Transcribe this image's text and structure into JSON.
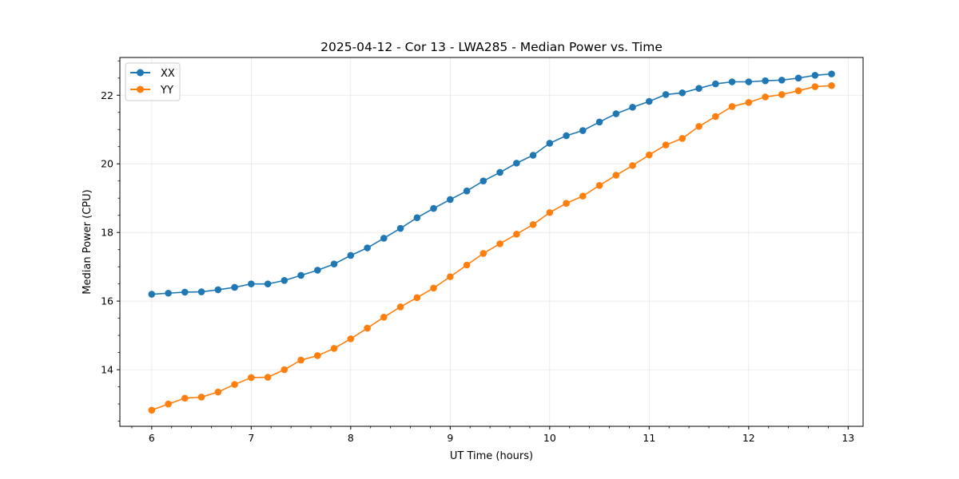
{
  "chart_data": {
    "type": "line",
    "title": "2025-04-12 - Cor 13 - LWA285 - Median Power vs. Time",
    "xlabel": "UT Time (hours)",
    "ylabel": "Median Power (CPU)",
    "xlim": [
      5.68,
      13.15
    ],
    "ylim": [
      12.35,
      23.1
    ],
    "xticks": [
      6,
      7,
      8,
      9,
      10,
      11,
      12,
      13
    ],
    "yticks": [
      14,
      16,
      18,
      20,
      22
    ],
    "grid": true,
    "legend_position": "upper-left",
    "x": [
      6.0,
      6.167,
      6.333,
      6.5,
      6.667,
      6.833,
      7.0,
      7.167,
      7.333,
      7.5,
      7.667,
      7.833,
      8.0,
      8.167,
      8.333,
      8.5,
      8.667,
      8.833,
      9.0,
      9.167,
      9.333,
      9.5,
      9.667,
      9.833,
      10.0,
      10.167,
      10.333,
      10.5,
      10.667,
      10.833,
      11.0,
      11.167,
      11.333,
      11.5,
      11.667,
      11.833,
      12.0,
      12.167,
      12.333,
      12.5,
      12.667,
      12.833
    ],
    "series": [
      {
        "name": "XX",
        "color": "#1f77b4",
        "values": [
          16.2,
          16.23,
          16.26,
          16.27,
          16.33,
          16.4,
          16.5,
          16.5,
          16.6,
          16.75,
          16.9,
          17.08,
          17.33,
          17.55,
          17.83,
          18.12,
          18.43,
          18.7,
          18.96,
          19.21,
          19.5,
          19.75,
          20.02,
          20.25,
          20.6,
          20.82,
          20.97,
          21.22,
          21.46,
          21.65,
          21.82,
          22.02,
          22.07,
          22.2,
          22.33,
          22.39,
          22.39,
          22.42,
          22.44,
          22.5,
          22.58,
          22.62
        ]
      },
      {
        "name": "YY",
        "color": "#ff7f0e",
        "values": [
          12.82,
          13.0,
          13.17,
          13.2,
          13.35,
          13.57,
          13.77,
          13.78,
          14.0,
          14.28,
          14.41,
          14.62,
          14.9,
          15.21,
          15.53,
          15.83,
          16.1,
          16.38,
          16.71,
          17.05,
          17.39,
          17.67,
          17.95,
          18.23,
          18.58,
          18.85,
          19.06,
          19.37,
          19.67,
          19.95,
          20.26,
          20.55,
          20.74,
          21.09,
          21.38,
          21.67,
          21.79,
          21.95,
          22.02,
          22.13,
          22.25,
          22.28
        ]
      }
    ]
  }
}
